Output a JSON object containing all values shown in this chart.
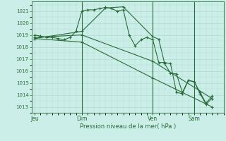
{
  "bg_color": "#cceee8",
  "grid_color": "#aaddcc",
  "line_color": "#2a6b3a",
  "xlabel": "Pression niveau de la mer( hPa )",
  "ylim": [
    1012.5,
    1021.8
  ],
  "yticks": [
    1013,
    1014,
    1015,
    1016,
    1017,
    1018,
    1019,
    1020,
    1021
  ],
  "xtick_labels": [
    "Jeu",
    "Dim",
    "Ven",
    "Sam"
  ],
  "xtick_positions": [
    0,
    8,
    20,
    27
  ],
  "vlines": [
    8,
    20,
    27
  ],
  "xlim": [
    -0.5,
    32
  ],
  "series1_x": [
    0,
    1,
    2,
    3,
    4,
    5,
    6,
    7,
    8,
    9,
    10,
    11,
    12,
    13,
    14,
    15,
    16,
    17,
    18,
    19,
    20,
    21,
    22,
    23,
    24,
    25,
    26,
    27,
    28,
    29,
    30
  ],
  "series1_y": [
    1019.0,
    1018.9,
    1018.8,
    1018.8,
    1018.7,
    1018.6,
    1018.8,
    1019.3,
    1021.0,
    1021.1,
    1021.1,
    1021.2,
    1021.3,
    1021.2,
    1021.0,
    1021.1,
    1019.0,
    1018.1,
    1018.6,
    1018.8,
    1018.6,
    1016.7,
    1016.7,
    1016.6,
    1014.2,
    1014.1,
    1015.2,
    1015.1,
    1014.1,
    1013.2,
    1013.7
  ],
  "series2_x": [
    0,
    8,
    20,
    30
  ],
  "series2_y": [
    1018.8,
    1019.0,
    1016.8,
    1013.7
  ],
  "series3_x": [
    0,
    8,
    20,
    30
  ],
  "series3_y": [
    1018.7,
    1018.4,
    1015.4,
    1013.0
  ],
  "series4_x": [
    0,
    8,
    12,
    15,
    20,
    21,
    22,
    23,
    24,
    25,
    26,
    27,
    28,
    29,
    30
  ],
  "series4_y": [
    1018.7,
    1019.3,
    1021.25,
    1021.35,
    1018.85,
    1018.65,
    1016.6,
    1015.8,
    1015.75,
    1014.2,
    1015.2,
    1015.1,
    1014.2,
    1013.3,
    1013.9
  ]
}
